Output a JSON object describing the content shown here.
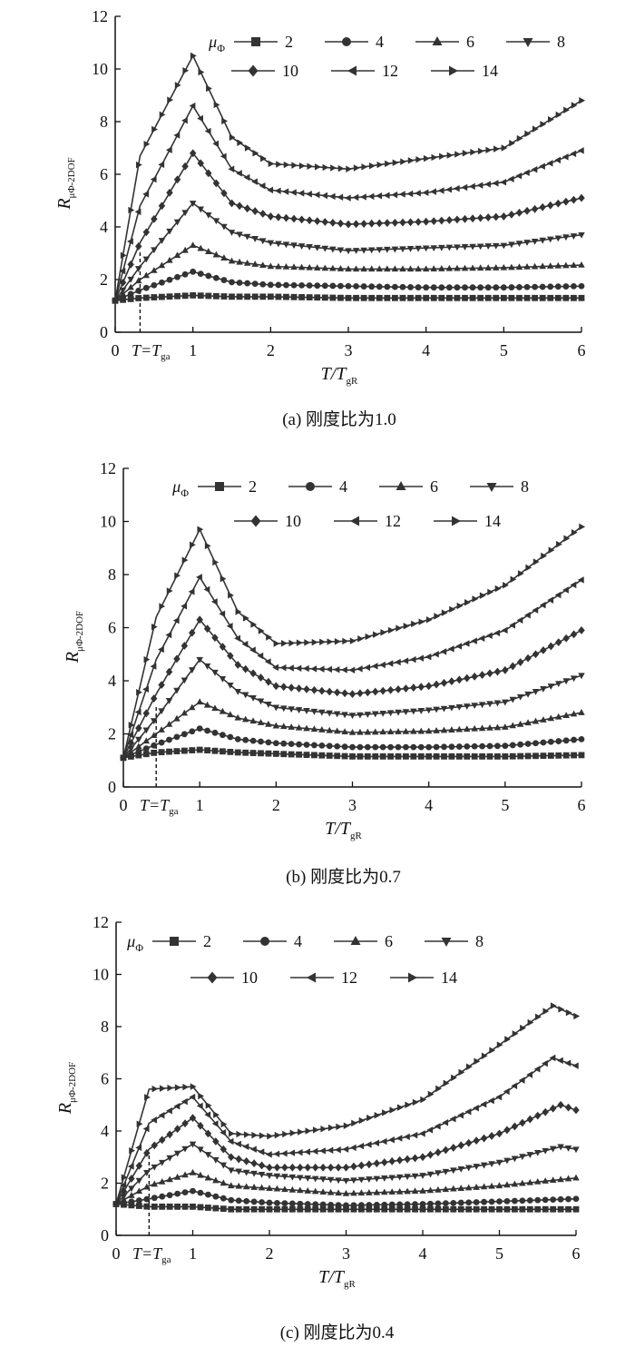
{
  "chart_data": [
    {
      "type": "line",
      "caption": "(a) 刚度比为1.0",
      "xlabel_main": "T/T",
      "xlabel_sub": "gR",
      "ylabel_main": "R",
      "ylabel_sub": "μΦ-2DOF",
      "legend_title": "μ",
      "legend_title_sub": "Φ",
      "marker_label_main": "T=T",
      "marker_label_sub": "ga",
      "marker_x": 0.32,
      "xlim": [
        0,
        6
      ],
      "ylim": [
        0,
        12
      ],
      "x_ticks": [
        "0",
        "1",
        "2",
        "3",
        "4",
        "5",
        "6"
      ],
      "y_ticks": [
        "0",
        "2",
        "4",
        "6",
        "8",
        "10",
        "12"
      ],
      "series": [
        {
          "name": "2",
          "marker": "square",
          "points": [
            [
              0,
              1.2
            ],
            [
              0.32,
              1.3
            ],
            [
              1,
              1.4
            ],
            [
              1.5,
              1.35
            ],
            [
              2,
              1.35
            ],
            [
              3,
              1.3
            ],
            [
              4,
              1.3
            ],
            [
              5,
              1.3
            ],
            [
              6,
              1.3
            ]
          ]
        },
        {
          "name": "4",
          "marker": "circle",
          "points": [
            [
              0,
              1.2
            ],
            [
              0.32,
              1.6
            ],
            [
              1,
              2.3
            ],
            [
              1.5,
              1.9
            ],
            [
              2,
              1.8
            ],
            [
              3,
              1.75
            ],
            [
              4,
              1.7
            ],
            [
              5,
              1.7
            ],
            [
              6,
              1.75
            ]
          ]
        },
        {
          "name": "6",
          "marker": "triangle",
          "points": [
            [
              0,
              1.2
            ],
            [
              0.32,
              2.0
            ],
            [
              1,
              3.3
            ],
            [
              1.5,
              2.7
            ],
            [
              2,
              2.5
            ],
            [
              3,
              2.4
            ],
            [
              4,
              2.4
            ],
            [
              5,
              2.45
            ],
            [
              6,
              2.55
            ]
          ]
        },
        {
          "name": "8",
          "marker": "tri-down",
          "points": [
            [
              0,
              1.2
            ],
            [
              0.32,
              2.5
            ],
            [
              1,
              4.9
            ],
            [
              1.5,
              3.8
            ],
            [
              2,
              3.4
            ],
            [
              3,
              3.1
            ],
            [
              4,
              3.2
            ],
            [
              5,
              3.3
            ],
            [
              6,
              3.7
            ]
          ]
        },
        {
          "name": "10",
          "marker": "diamond",
          "points": [
            [
              0,
              1.2
            ],
            [
              0.32,
              3.4
            ],
            [
              1,
              6.8
            ],
            [
              1.5,
              4.9
            ],
            [
              2,
              4.4
            ],
            [
              3,
              4.1
            ],
            [
              4,
              4.2
            ],
            [
              5,
              4.4
            ],
            [
              6,
              5.1
            ]
          ]
        },
        {
          "name": "12",
          "marker": "tri-left",
          "points": [
            [
              0,
              1.2
            ],
            [
              0.32,
              4.8
            ],
            [
              1,
              8.6
            ],
            [
              1.5,
              6.2
            ],
            [
              2,
              5.4
            ],
            [
              3,
              5.1
            ],
            [
              4,
              5.3
            ],
            [
              5,
              5.7
            ],
            [
              6,
              6.9
            ]
          ]
        },
        {
          "name": "14",
          "marker": "tri-right",
          "points": [
            [
              0,
              1.2
            ],
            [
              0.32,
              6.7
            ],
            [
              1,
              10.5
            ],
            [
              1.5,
              7.4
            ],
            [
              2,
              6.4
            ],
            [
              3,
              6.2
            ],
            [
              4,
              6.6
            ],
            [
              5,
              7.0
            ],
            [
              6,
              8.8
            ]
          ]
        }
      ]
    },
    {
      "type": "line",
      "caption": "(b) 刚度比为0.7",
      "xlabel_main": "T/T",
      "xlabel_sub": "gR",
      "ylabel_main": "R",
      "ylabel_sub": "μΦ-2DOF",
      "legend_title": "μ",
      "legend_title_sub": "Φ",
      "marker_label_main": "T=T",
      "marker_label_sub": "ga",
      "marker_x": 0.43,
      "xlim": [
        0,
        6
      ],
      "ylim": [
        0,
        12
      ],
      "x_ticks": [
        "0",
        "1",
        "2",
        "3",
        "4",
        "5",
        "6"
      ],
      "y_ticks": [
        "0",
        "2",
        "4",
        "6",
        "8",
        "10",
        "12"
      ],
      "series": [
        {
          "name": "2",
          "marker": "square",
          "points": [
            [
              0,
              1.1
            ],
            [
              0.43,
              1.3
            ],
            [
              1,
              1.4
            ],
            [
              1.5,
              1.3
            ],
            [
              2,
              1.25
            ],
            [
              3,
              1.15
            ],
            [
              4,
              1.15
            ],
            [
              5,
              1.15
            ],
            [
              6,
              1.2
            ]
          ]
        },
        {
          "name": "4",
          "marker": "circle",
          "points": [
            [
              0,
              1.1
            ],
            [
              0.43,
              1.6
            ],
            [
              1,
              2.2
            ],
            [
              1.5,
              1.8
            ],
            [
              2,
              1.65
            ],
            [
              3,
              1.5
            ],
            [
              4,
              1.5
            ],
            [
              5,
              1.55
            ],
            [
              6,
              1.8
            ]
          ]
        },
        {
          "name": "6",
          "marker": "triangle",
          "points": [
            [
              0,
              1.1
            ],
            [
              0.43,
              2.0
            ],
            [
              1,
              3.2
            ],
            [
              1.5,
              2.6
            ],
            [
              2,
              2.3
            ],
            [
              3,
              2.05
            ],
            [
              4,
              2.1
            ],
            [
              5,
              2.25
            ],
            [
              6,
              2.8
            ]
          ]
        },
        {
          "name": "8",
          "marker": "tri-down",
          "points": [
            [
              0,
              1.1
            ],
            [
              0.43,
              2.6
            ],
            [
              1,
              4.8
            ],
            [
              1.5,
              3.6
            ],
            [
              2,
              3.0
            ],
            [
              3,
              2.7
            ],
            [
              4,
              2.9
            ],
            [
              5,
              3.2
            ],
            [
              6,
              4.2
            ]
          ]
        },
        {
          "name": "10",
          "marker": "diamond",
          "points": [
            [
              0,
              1.1
            ],
            [
              0.43,
              3.5
            ],
            [
              1,
              6.3
            ],
            [
              1.5,
              4.6
            ],
            [
              2,
              3.8
            ],
            [
              3,
              3.5
            ],
            [
              4,
              3.8
            ],
            [
              5,
              4.4
            ],
            [
              6,
              5.9
            ]
          ]
        },
        {
          "name": "12",
          "marker": "tri-left",
          "points": [
            [
              0,
              1.1
            ],
            [
              0.43,
              4.8
            ],
            [
              1,
              7.9
            ],
            [
              1.5,
              5.6
            ],
            [
              2,
              4.5
            ],
            [
              3,
              4.4
            ],
            [
              4,
              4.9
            ],
            [
              5,
              5.9
            ],
            [
              6,
              7.8
            ]
          ]
        },
        {
          "name": "14",
          "marker": "tri-right",
          "points": [
            [
              0,
              1.1
            ],
            [
              0.43,
              6.4
            ],
            [
              1,
              9.7
            ],
            [
              1.5,
              6.6
            ],
            [
              2,
              5.4
            ],
            [
              3,
              5.5
            ],
            [
              4,
              6.3
            ],
            [
              5,
              7.6
            ],
            [
              6,
              9.8
            ]
          ]
        }
      ]
    },
    {
      "type": "line",
      "caption": "(c) 刚度比为0.4",
      "xlabel_main": "T/T",
      "xlabel_sub": "gR",
      "ylabel_main": "R",
      "ylabel_sub": "μΦ-2DOF",
      "legend_title": "μ",
      "legend_title_sub": "Φ",
      "marker_label_main": "T=T",
      "marker_label_sub": "ga",
      "marker_x": 0.43,
      "xlim": [
        0,
        6
      ],
      "ylim": [
        0,
        12
      ],
      "x_ticks": [
        "0",
        "1",
        "2",
        "3",
        "4",
        "5",
        "6"
      ],
      "y_ticks": [
        "0",
        "2",
        "4",
        "6",
        "8",
        "10",
        "12"
      ],
      "series": [
        {
          "name": "2",
          "marker": "square",
          "points": [
            [
              0,
              1.2
            ],
            [
              0.43,
              1.1
            ],
            [
              1,
              1.1
            ],
            [
              1.5,
              1.0
            ],
            [
              2,
              1.0
            ],
            [
              3,
              1.0
            ],
            [
              4,
              1.0
            ],
            [
              5,
              1.0
            ],
            [
              6,
              1.0
            ]
          ]
        },
        {
          "name": "4",
          "marker": "circle",
          "points": [
            [
              0,
              1.2
            ],
            [
              0.43,
              1.4
            ],
            [
              1,
              1.7
            ],
            [
              1.5,
              1.35
            ],
            [
              2,
              1.25
            ],
            [
              3,
              1.15
            ],
            [
              4,
              1.2
            ],
            [
              5,
              1.3
            ],
            [
              6,
              1.4
            ]
          ]
        },
        {
          "name": "6",
          "marker": "triangle",
          "points": [
            [
              0,
              1.2
            ],
            [
              0.43,
              1.9
            ],
            [
              1,
              2.4
            ],
            [
              1.5,
              1.9
            ],
            [
              2,
              1.8
            ],
            [
              3,
              1.6
            ],
            [
              4,
              1.7
            ],
            [
              5,
              1.9
            ],
            [
              6,
              2.2
            ]
          ]
        },
        {
          "name": "8",
          "marker": "tri-down",
          "points": [
            [
              0,
              1.2
            ],
            [
              0.43,
              2.5
            ],
            [
              1,
              3.5
            ],
            [
              1.5,
              2.5
            ],
            [
              2,
              2.3
            ],
            [
              3,
              2.1
            ],
            [
              4,
              2.3
            ],
            [
              5,
              2.8
            ],
            [
              5.8,
              3.4
            ],
            [
              6,
              3.3
            ]
          ]
        },
        {
          "name": "10",
          "marker": "diamond",
          "points": [
            [
              0,
              1.2
            ],
            [
              0.43,
              3.3
            ],
            [
              1,
              4.5
            ],
            [
              1.5,
              3.0
            ],
            [
              2,
              2.6
            ],
            [
              3,
              2.6
            ],
            [
              4,
              3.0
            ],
            [
              5,
              3.9
            ],
            [
              5.8,
              5.0
            ],
            [
              6,
              4.8
            ]
          ]
        },
        {
          "name": "12",
          "marker": "tri-left",
          "points": [
            [
              0,
              1.2
            ],
            [
              0.43,
              4.3
            ],
            [
              1,
              5.3
            ],
            [
              1.5,
              3.6
            ],
            [
              2,
              3.1
            ],
            [
              3,
              3.3
            ],
            [
              4,
              3.9
            ],
            [
              5,
              5.3
            ],
            [
              5.7,
              6.8
            ],
            [
              6,
              6.5
            ]
          ]
        },
        {
          "name": "14",
          "marker": "tri-right",
          "points": [
            [
              0,
              1.2
            ],
            [
              0.43,
              5.6
            ],
            [
              1,
              5.7
            ],
            [
              1.5,
              3.9
            ],
            [
              2,
              3.8
            ],
            [
              3,
              4.2
            ],
            [
              4,
              5.2
            ],
            [
              5,
              7.3
            ],
            [
              5.7,
              8.8
            ],
            [
              6,
              8.4
            ]
          ]
        }
      ]
    }
  ]
}
